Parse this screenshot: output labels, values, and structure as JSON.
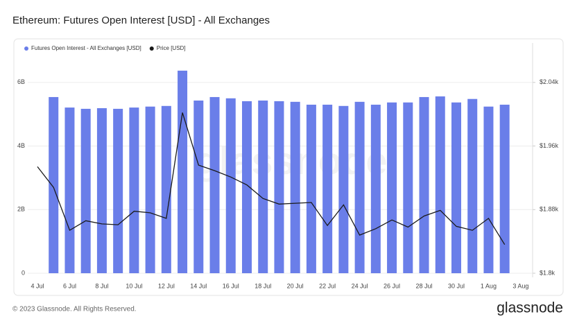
{
  "chart_data": {
    "type": "bar-line",
    "title": "Ethereum: Futures Open Interest [USD] - All Exchanges",
    "watermark": "glassnode",
    "categories": [
      "4 Jul",
      null,
      "6 Jul",
      null,
      "8 Jul",
      null,
      "10 Jul",
      null,
      "12 Jul",
      null,
      "14 Jul",
      null,
      "16 Jul",
      null,
      "18 Jul",
      null,
      "20 Jul",
      null,
      "22 Jul",
      null,
      "24 Jul",
      null,
      "26 Jul",
      null,
      "28 Jul",
      null,
      "30 Jul",
      null,
      "1 Aug",
      null,
      "3 Aug"
    ],
    "series": [
      {
        "name": "Futures Open Interest - All Exchanges [USD]",
        "color": "#6a7ee9",
        "type": "bar",
        "values": [
          null,
          5.54,
          5.21,
          5.17,
          5.19,
          5.17,
          5.21,
          5.24,
          5.26,
          6.37,
          5.43,
          5.54,
          5.5,
          5.41,
          5.43,
          5.41,
          5.39,
          5.3,
          5.3,
          5.26,
          5.39,
          5.3,
          5.37,
          5.37,
          5.54,
          5.56,
          5.37,
          5.48,
          5.24,
          5.3,
          null
        ]
      },
      {
        "name": "Price [USD]",
        "color": "#1a1a1a",
        "type": "line",
        "axis": "y2",
        "values": [
          1934,
          1908,
          1854,
          1866,
          1862,
          1861,
          1878,
          1876,
          1869,
          2002,
          1936,
          1929,
          1921,
          1911,
          1894,
          1887,
          1888,
          1889,
          1860,
          1886,
          1848,
          1856,
          1867,
          1858,
          1872,
          1879,
          1859,
          1854,
          1869,
          1836,
          null
        ]
      }
    ],
    "ylim": [
      0,
      7
    ],
    "yticks": [
      0,
      {
        "value": 2,
        "label": "2B"
      },
      {
        "value": 4,
        "label": "4B"
      },
      {
        "value": 6,
        "label": "6B"
      }
    ],
    "y2lim": [
      1800,
      2080
    ],
    "y2ticks": [
      {
        "value": 1800,
        "label": "$1.8k"
      },
      {
        "value": 1880,
        "label": "$1.88k"
      },
      {
        "value": 1960,
        "label": "$1.96k"
      },
      {
        "value": 2040,
        "label": "$2.04k"
      }
    ],
    "grid": true
  },
  "footer": {
    "copyright": "© 2023 Glassnode. All Rights Reserved.",
    "logo": "glassnode"
  }
}
